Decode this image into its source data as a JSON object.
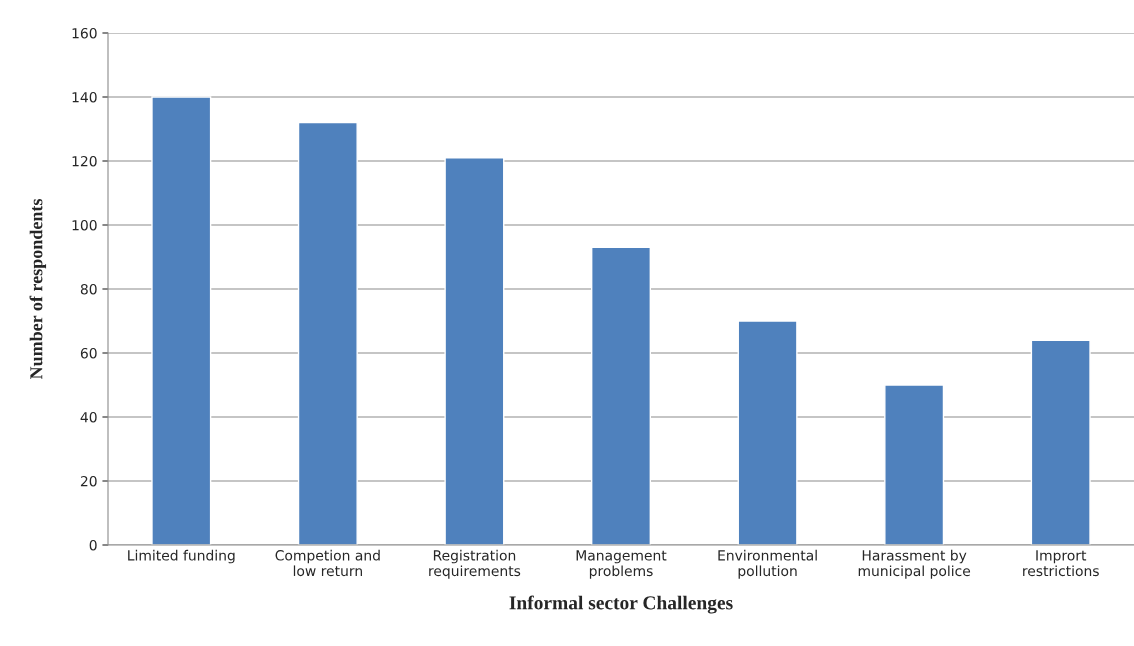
{
  "chart_data": {
    "type": "bar",
    "xlabel": "Informal sector Challenges",
    "ylabel": "Number of respondents",
    "categories": [
      "Limited funding",
      "Competion and\nlow return",
      "Registration\nrequirements",
      "Management\nproblems",
      "Environmental\npollution",
      "Harassment by\nmunicipal police",
      "Imprort\nrestrictions"
    ],
    "values": [
      140,
      132,
      121,
      93,
      70,
      50,
      64
    ],
    "color": "#4f81bd",
    "ylim": [
      0,
      160
    ],
    "yticks": [
      0,
      20,
      40,
      60,
      80,
      100,
      120,
      140,
      160
    ],
    "grid": "y",
    "legend": false
  }
}
